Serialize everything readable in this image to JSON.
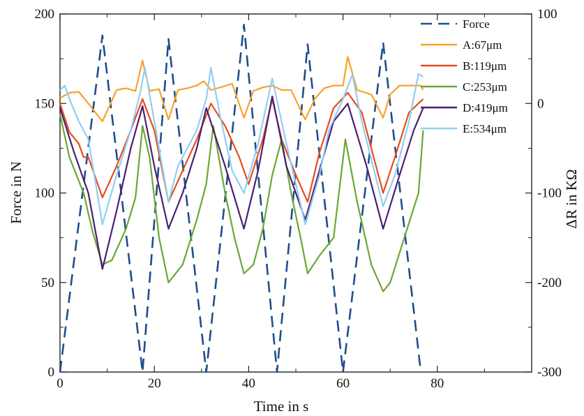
{
  "chart_data": {
    "type": "line",
    "title": "",
    "xlabel": "Time in s",
    "ylabel_left": "Force in N",
    "ylabel_right": "ΔR in KΩ",
    "xlim": [
      0,
      100
    ],
    "ylim_left": [
      0,
      200
    ],
    "ylim_right": [
      -300,
      100
    ],
    "x_ticks": [
      0,
      20,
      40,
      60,
      80
    ],
    "x_tick_labels": [
      "0",
      "20",
      "40",
      "60",
      "80"
    ],
    "y_left_ticks": [
      0,
      50,
      100,
      150,
      200
    ],
    "y_left_tick_labels": [
      "0",
      "50",
      "100",
      "150",
      "200"
    ],
    "y_right_ticks": [
      -300,
      -200,
      -100,
      0,
      100
    ],
    "y_right_tick_labels": [
      "-300",
      "-200",
      "-100",
      "0",
      "100"
    ],
    "grid": false,
    "legend_position": "top-right",
    "series": [
      {
        "name": "Force",
        "axis": "left",
        "color": "#1f4e8c",
        "dashed": true,
        "x": [
          0,
          9,
          17.5,
          23,
          31,
          39,
          46,
          52.5,
          60,
          68.5,
          76.5
        ],
        "y": [
          0,
          188,
          0,
          186,
          0,
          194,
          0,
          183,
          0,
          184,
          0
        ]
      },
      {
        "name": "A:67μm",
        "axis": "right",
        "color": "#f7a22c",
        "dashed": false,
        "x": [
          0,
          2,
          4,
          6,
          9,
          12,
          14,
          16,
          17.5,
          19,
          21,
          23,
          25,
          27,
          29,
          30.5,
          32,
          34,
          36.5,
          39,
          41,
          43,
          45,
          47,
          49,
          52,
          54,
          56,
          58,
          60,
          61,
          63,
          66,
          68.5,
          70,
          72,
          74,
          76.5,
          77
        ],
        "y": [
          6,
          12,
          13,
          0,
          -20,
          15,
          17,
          14,
          48,
          14,
          16,
          -18,
          15,
          17,
          20,
          25,
          15,
          18,
          22,
          -16,
          14,
          18,
          20,
          15,
          15,
          -18,
          5,
          17,
          20,
          20,
          52,
          15,
          10,
          -16,
          10,
          20,
          20,
          20,
          15
        ]
      },
      {
        "name": "B:119μm",
        "axis": "right",
        "color": "#e84c1f",
        "dashed": false,
        "x": [
          0,
          2,
          4,
          5,
          6,
          9,
          12,
          15,
          17.5,
          20,
          23,
          26,
          29,
          32,
          35,
          38,
          40,
          43,
          45,
          47,
          50,
          52.5,
          55,
          58,
          61,
          64,
          68.5,
          71,
          74,
          77
        ],
        "y": [
          0,
          -32,
          -45,
          -60,
          -60,
          -105,
          -70,
          -30,
          5,
          -30,
          -110,
          -75,
          -40,
          0,
          -25,
          -60,
          -90,
          -40,
          5,
          -40,
          -80,
          -110,
          -55,
          -5,
          12,
          -10,
          -100,
          -60,
          -10,
          5
        ]
      },
      {
        "name": "C:253μm",
        "axis": "right",
        "color": "#6aa832",
        "dashed": false,
        "x": [
          0,
          2,
          5,
          7,
          9,
          11,
          14,
          16,
          17.5,
          19,
          21,
          23,
          26,
          29,
          31,
          32.5,
          35,
          37,
          39,
          41,
          43,
          45,
          47,
          49,
          51,
          52.5,
          55,
          58,
          60.5,
          63,
          66,
          68.5,
          70,
          73,
          76,
          77
        ],
        "y": [
          -12,
          -60,
          -100,
          -145,
          -180,
          -175,
          -140,
          -105,
          -25,
          -60,
          -150,
          -200,
          -180,
          -130,
          -90,
          -25,
          -100,
          -150,
          -190,
          -180,
          -140,
          -80,
          -40,
          -100,
          -150,
          -190,
          -170,
          -150,
          -40,
          -110,
          -180,
          -210,
          -200,
          -150,
          -100,
          -30
        ]
      },
      {
        "name": "D:419μm",
        "axis": "right",
        "color": "#4a1f72",
        "dashed": false,
        "x": [
          0,
          3,
          6,
          9,
          12,
          15,
          17.5,
          20,
          23,
          26,
          29,
          31,
          35,
          39,
          42,
          45,
          48,
          52,
          55,
          58,
          61,
          65,
          68.5,
          72,
          75,
          77
        ],
        "y": [
          -5,
          -55,
          -100,
          -185,
          -120,
          -50,
          -3,
          -70,
          -140,
          -100,
          -50,
          -5,
          -70,
          -140,
          -75,
          8,
          -70,
          -130,
          -75,
          -20,
          0,
          -70,
          -140,
          -80,
          -30,
          -5
        ]
      },
      {
        "name": "E:534μm",
        "axis": "right",
        "color": "#8fcff4",
        "dashed": false,
        "x": [
          0,
          1,
          2,
          4,
          6,
          9,
          12,
          15,
          17,
          18,
          20,
          23,
          25,
          29,
          31,
          32,
          34,
          36.5,
          39,
          42,
          45,
          48,
          52,
          55,
          57,
          60,
          62,
          64,
          68.5,
          71,
          74,
          76,
          77
        ],
        "y": [
          15,
          20,
          5,
          -20,
          -40,
          -135,
          -80,
          -30,
          12,
          40,
          -20,
          -110,
          -70,
          -30,
          5,
          40,
          -15,
          -75,
          -100,
          -45,
          28,
          -45,
          -135,
          -80,
          -30,
          5,
          32,
          -20,
          -115,
          -80,
          -20,
          33,
          30
        ]
      }
    ]
  }
}
